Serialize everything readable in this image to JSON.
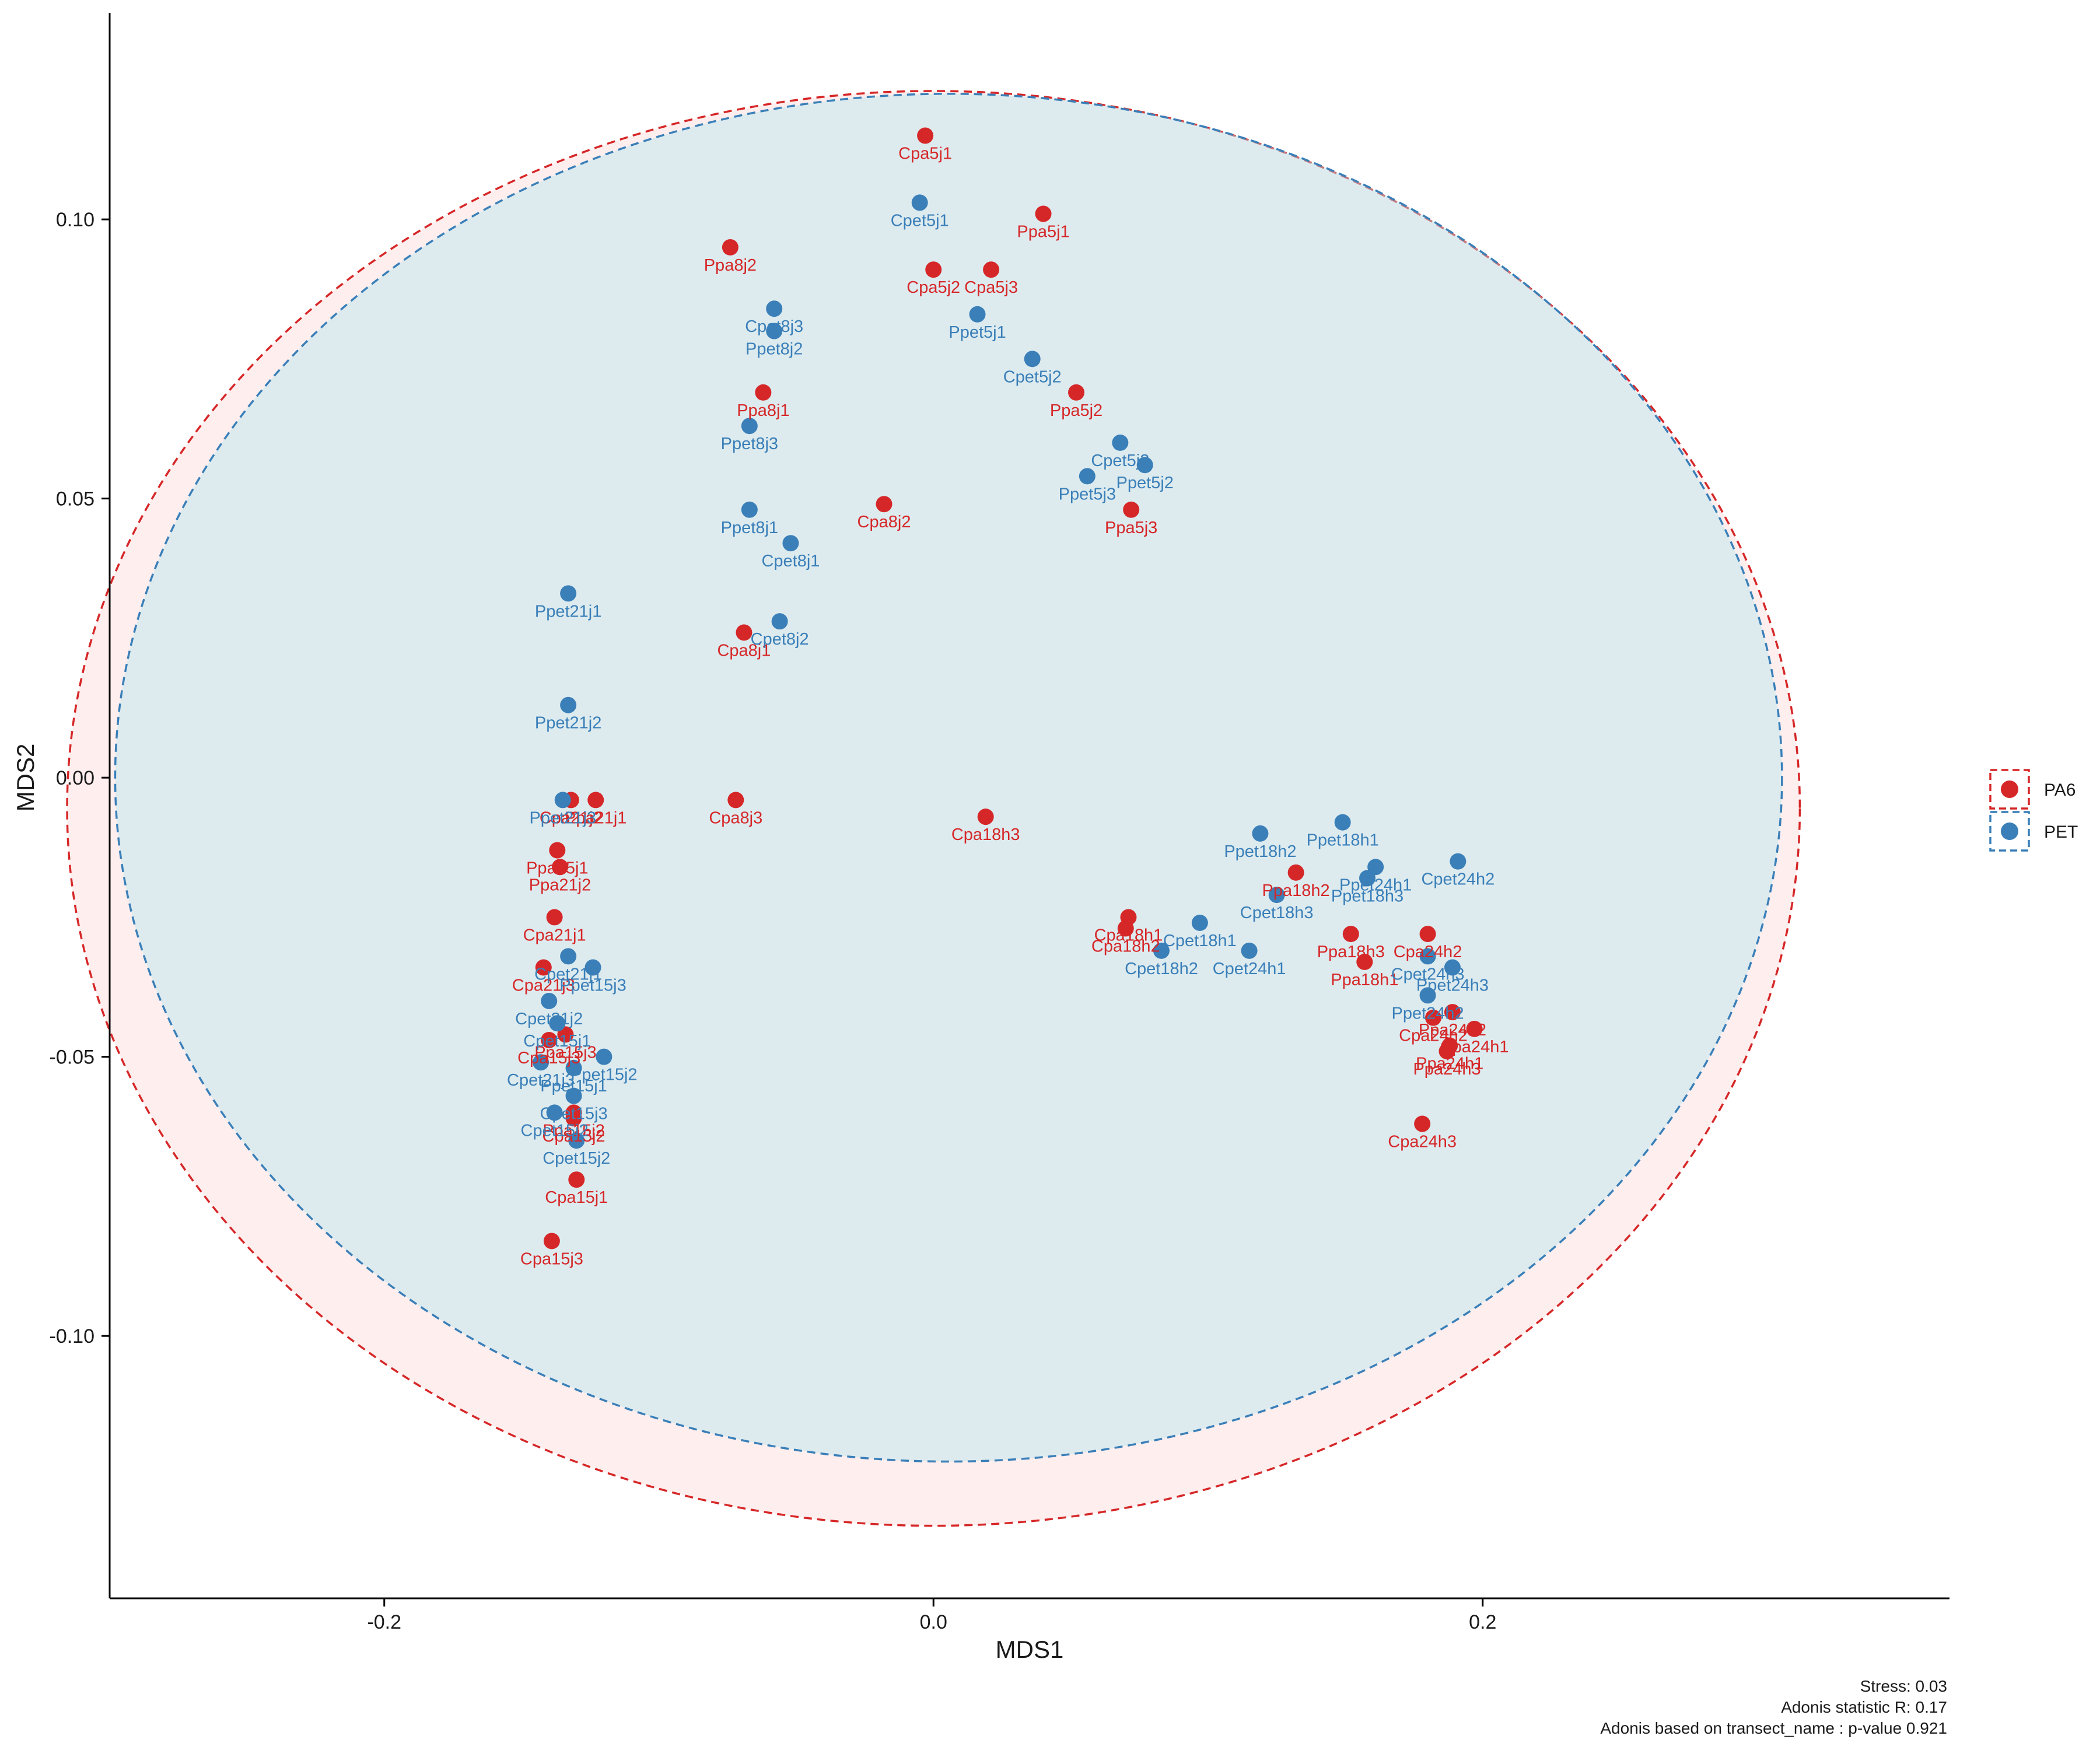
{
  "chart_data": {
    "type": "scatter",
    "xlabel": "MDS1",
    "ylabel": "MDS2",
    "xlim": [
      -0.3,
      0.37
    ],
    "ylim": [
      -0.147,
      0.137
    ],
    "x_ticks": [
      {
        "value": -0.2,
        "label": "-0.2"
      },
      {
        "value": 0.0,
        "label": "0.0"
      },
      {
        "value": 0.2,
        "label": "0.2"
      }
    ],
    "y_ticks": [
      {
        "value": 0.1,
        "label": "0.10"
      },
      {
        "value": 0.05,
        "label": "0.05"
      },
      {
        "value": 0.0,
        "label": "0.00"
      },
      {
        "value": -0.05,
        "label": "-0.05"
      },
      {
        "value": -0.1,
        "label": "-0.10"
      }
    ],
    "grid": false,
    "legend_position": "right",
    "colors": {
      "PA6": "#d62728",
      "PET": "#3a7fb8"
    },
    "series": [
      {
        "name": "PA6",
        "color": "#d62728",
        "ellipse": {
          "center": [
            0.0,
            -0.0055
          ],
          "radius_x": 0.3155,
          "radius_y": 0.1285
        },
        "points": [
          {
            "label": "Cpa5j1",
            "x": -0.003,
            "y": 0.115
          },
          {
            "label": "Ppa5j1",
            "x": 0.04,
            "y": 0.101
          },
          {
            "label": "Ppa8j2",
            "x": -0.074,
            "y": 0.095
          },
          {
            "label": "Cpa5j2",
            "x": 0.0,
            "y": 0.091
          },
          {
            "label": "Cpa5j3",
            "x": 0.021,
            "y": 0.091
          },
          {
            "label": "Ppa5j2",
            "x": 0.052,
            "y": 0.069
          },
          {
            "label": "Ppa8j1",
            "x": -0.062,
            "y": 0.069
          },
          {
            "label": "Cpa8j2",
            "x": -0.018,
            "y": 0.049
          },
          {
            "label": "Ppa5j3",
            "x": 0.072,
            "y": 0.048
          },
          {
            "label": "Cpa8j1",
            "x": -0.069,
            "y": 0.026
          },
          {
            "label": "Cpa8j3",
            "x": -0.072,
            "y": -0.004
          },
          {
            "label": "Cpa18h3",
            "x": 0.019,
            "y": -0.007
          },
          {
            "label": "Ppa21j1",
            "x": -0.123,
            "y": -0.004
          },
          {
            "label": "Cpa21j2",
            "x": -0.132,
            "y": -0.004
          },
          {
            "label": "Ppa15j1",
            "x": -0.137,
            "y": -0.013
          },
          {
            "label": "Ppa21j2",
            "x": -0.136,
            "y": -0.016
          },
          {
            "label": "Cpa21j1",
            "x": -0.138,
            "y": -0.025
          },
          {
            "label": "Cpa21j3",
            "x": -0.142,
            "y": -0.034
          },
          {
            "label": "Ppa15j3",
            "x": -0.134,
            "y": -0.046
          },
          {
            "label": "Cpa15j3p",
            "x": -0.14,
            "y": -0.047
          },
          {
            "label": "Ppa15j2",
            "x": -0.131,
            "y": -0.06
          },
          {
            "label": "Cpa15j2",
            "x": -0.131,
            "y": -0.061
          },
          {
            "label": "Cpa15j1",
            "x": -0.13,
            "y": -0.072
          },
          {
            "label": "Cpa15j3",
            "x": -0.139,
            "y": -0.083
          },
          {
            "label": "Ppa18h2",
            "x": 0.132,
            "y": -0.017
          },
          {
            "label": "Cpa18h1",
            "x": 0.071,
            "y": -0.025
          },
          {
            "label": "Cpa18h2",
            "x": 0.07,
            "y": -0.027
          },
          {
            "label": "Ppa18h3",
            "x": 0.152,
            "y": -0.028
          },
          {
            "label": "Ppa18h1",
            "x": 0.157,
            "y": -0.033
          },
          {
            "label": "Cpa24h2",
            "x": 0.18,
            "y": -0.028
          },
          {
            "label": "Ppa24h2",
            "x": 0.189,
            "y": -0.042
          },
          {
            "label": "Cpa24h2b",
            "x": 0.182,
            "y": -0.043
          },
          {
            "label": "Cpa24h1",
            "x": 0.197,
            "y": -0.045
          },
          {
            "label": "Ppa24h1",
            "x": 0.188,
            "y": -0.048
          },
          {
            "label": "Ppa24h3",
            "x": 0.187,
            "y": -0.049
          },
          {
            "label": "Cpa24h3",
            "x": 0.178,
            "y": -0.062
          }
        ]
      },
      {
        "name": "PET",
        "color": "#3a7fb8",
        "ellipse": {
          "center": [
            0.0055,
            0.0
          ],
          "radius_x": 0.3035,
          "radius_y": 0.1225
        },
        "points": [
          {
            "label": "Cpet5j1",
            "x": -0.005,
            "y": 0.103
          },
          {
            "label": "Cpet8j3",
            "x": -0.058,
            "y": 0.084
          },
          {
            "label": "Ppet8j2",
            "x": -0.058,
            "y": 0.08
          },
          {
            "label": "Ppet5j1",
            "x": 0.016,
            "y": 0.083
          },
          {
            "label": "Cpet5j2",
            "x": 0.036,
            "y": 0.075
          },
          {
            "label": "Ppet8j3",
            "x": -0.067,
            "y": 0.063
          },
          {
            "label": "Cpet5j3",
            "x": 0.068,
            "y": 0.06
          },
          {
            "label": "Ppet5j2",
            "x": 0.077,
            "y": 0.056
          },
          {
            "label": "Ppet5j3",
            "x": 0.056,
            "y": 0.054
          },
          {
            "label": "Ppet8j1",
            "x": -0.067,
            "y": 0.048
          },
          {
            "label": "Cpet8j1",
            "x": -0.052,
            "y": 0.042
          },
          {
            "label": "Cpet8j2",
            "x": -0.056,
            "y": 0.028
          },
          {
            "label": "Ppet21j1",
            "x": -0.133,
            "y": 0.033
          },
          {
            "label": "Ppet21j2",
            "x": -0.133,
            "y": 0.013
          },
          {
            "label": "Ppet21j3",
            "x": -0.135,
            "y": -0.004
          },
          {
            "label": "Cpet21j1",
            "x": -0.133,
            "y": -0.032
          },
          {
            "label": "Ppet15j3",
            "x": -0.124,
            "y": -0.034
          },
          {
            "label": "Cpet21j2",
            "x": -0.14,
            "y": -0.04
          },
          {
            "label": "Cpet15j1",
            "x": -0.137,
            "y": -0.044
          },
          {
            "label": "Ppet15j2",
            "x": -0.12,
            "y": -0.05
          },
          {
            "label": "Cpet21j3",
            "x": -0.143,
            "y": -0.051
          },
          {
            "label": "Ppet15j1",
            "x": -0.131,
            "y": -0.052
          },
          {
            "label": "Cpet15j3",
            "x": -0.131,
            "y": -0.057
          },
          {
            "label": "Cpet15j2b",
            "x": -0.138,
            "y": -0.06
          },
          {
            "label": "Cpet15j2",
            "x": -0.13,
            "y": -0.065
          },
          {
            "label": "Ppet18h2",
            "x": 0.119,
            "y": -0.01
          },
          {
            "label": "Ppet18h1",
            "x": 0.149,
            "y": -0.008
          },
          {
            "label": "Cpet24h2",
            "x": 0.191,
            "y": -0.015
          },
          {
            "label": "Ppet24h1",
            "x": 0.161,
            "y": -0.016
          },
          {
            "label": "Ppet18h3",
            "x": 0.158,
            "y": -0.018
          },
          {
            "label": "Cpet18h3",
            "x": 0.125,
            "y": -0.021
          },
          {
            "label": "Cpet18h1",
            "x": 0.097,
            "y": -0.026
          },
          {
            "label": "Cpet18h2",
            "x": 0.083,
            "y": -0.031
          },
          {
            "label": "Cpet24h1",
            "x": 0.115,
            "y": -0.031
          },
          {
            "label": "Cpet24h3",
            "x": 0.18,
            "y": -0.032
          },
          {
            "label": "Ppet24h3",
            "x": 0.189,
            "y": -0.034
          },
          {
            "label": "Ppet24h2",
            "x": 0.18,
            "y": -0.039
          }
        ]
      }
    ],
    "annotations": [
      "Stress: 0.03",
      "Adonis statistic R: 0.17",
      "Adonis based on  transect_name : p-value 0.921"
    ]
  }
}
